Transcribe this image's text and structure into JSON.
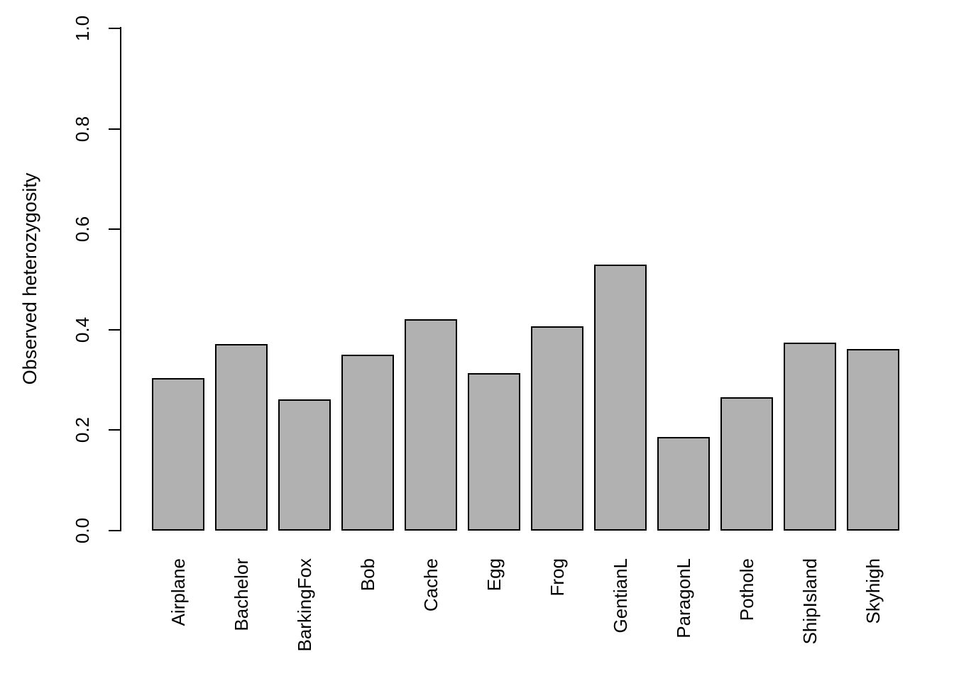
{
  "chart_data": {
    "type": "bar",
    "title": "",
    "xlabel": "",
    "ylabel": "Observed heterozygosity",
    "categories": [
      "Airplane",
      "Bachelor",
      "BarkingFox",
      "Bob",
      "Cache",
      "Egg",
      "Frog",
      "GentianL",
      "ParagonL",
      "Pothole",
      "ShipIsland",
      "Skyhigh"
    ],
    "values": [
      0.304,
      0.372,
      0.261,
      0.35,
      0.421,
      0.314,
      0.407,
      0.53,
      0.187,
      0.266,
      0.374,
      0.362
    ],
    "ylim": [
      0.0,
      1.0
    ],
    "yticks": [
      0.0,
      0.2,
      0.4,
      0.6,
      0.8,
      1.0
    ],
    "ytick_labels": [
      "0.0",
      "0.2",
      "0.4",
      "0.6",
      "0.8",
      "1.0"
    ],
    "grid": false,
    "legend": false,
    "x_tick_labels_rotated_90": true,
    "y_tick_labels_rotated_90": true,
    "colors": {
      "bar_fill": "#b1b1b1",
      "bar_border": "#000000",
      "axis": "#000000",
      "background": "#ffffff"
    }
  }
}
